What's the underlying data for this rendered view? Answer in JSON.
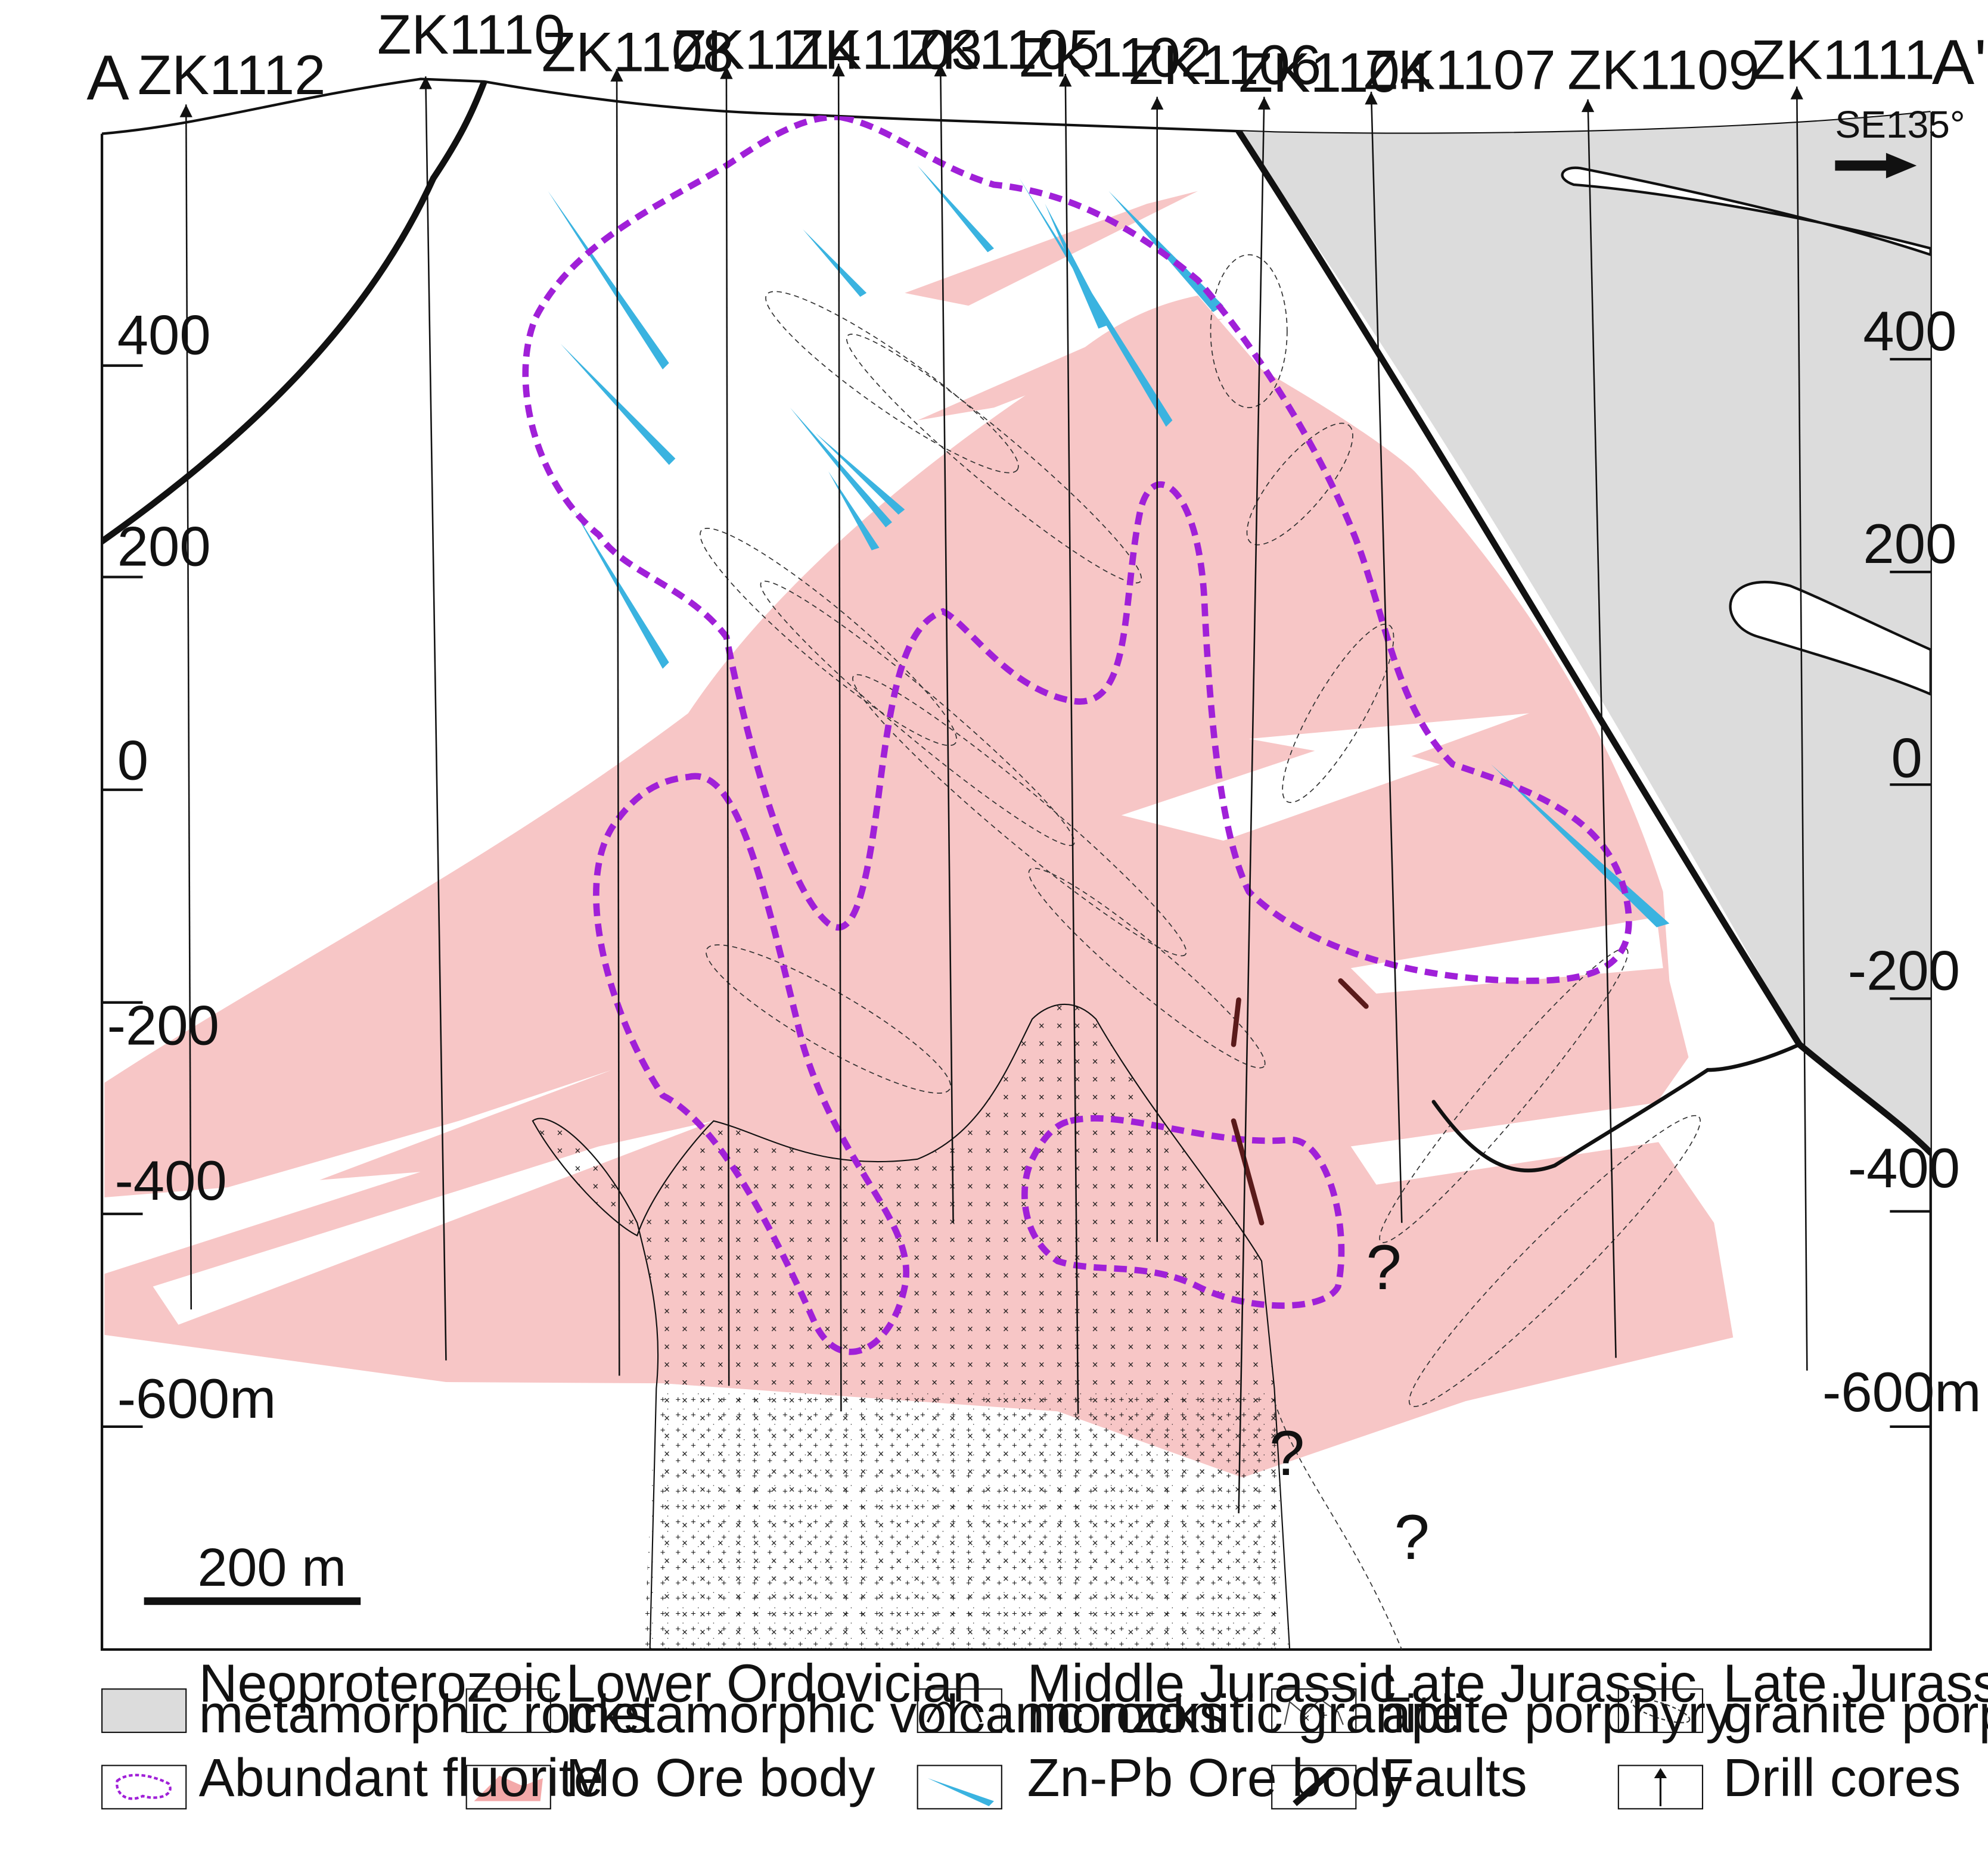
{
  "section": {
    "end_left": "A",
    "end_right": "A'",
    "orientation": "SE135°",
    "scale_label": "200 m"
  },
  "drill_holes": [
    "ZK1112",
    "ZK1110",
    "ZK1108",
    "ZK1114",
    "ZK1103",
    "ZK1105",
    "ZK1102",
    "ZK1106",
    "ZK1104",
    "ZK1107",
    "ZK1109",
    "ZK1111"
  ],
  "elevations_left": [
    "400",
    "200",
    "0",
    "-200",
    "-400",
    "-600m"
  ],
  "elevations_right": [
    "400",
    "200",
    "0",
    "-200",
    "-400",
    "-600m"
  ],
  "uncertain_marks": [
    "?",
    "?",
    "?"
  ],
  "colors": {
    "mo_ore": "#f7c6c6",
    "fluorite": "#a020d8",
    "zn_pb": "#3ab3e0",
    "neoproterozoic": "#dcdcdc",
    "fault": "#2a1a1a"
  },
  "legend": [
    {
      "icon": "neoproterozoic-swatch",
      "line1": "Neoproterozoic",
      "line2": "metamorphic rocks"
    },
    {
      "icon": "ordovician-swatch",
      "line1": "Lower Ordovician",
      "line2": "metamorphic volcanic rocks"
    },
    {
      "icon": "monzonitic-granite-icon",
      "line1": "Middle Jurassic",
      "line2": "monzonitic granite"
    },
    {
      "icon": "aplite-porphyry-icon",
      "line1": "Late Jurassic",
      "line2": "aplite porphyry"
    },
    {
      "icon": "granite-porphyry-icon",
      "line1": "Late Jurassic",
      "line2": "granite porphyry"
    },
    {
      "icon": "fluorite-icon",
      "line1": "Abundant fluorite",
      "line2": ""
    },
    {
      "icon": "mo-ore-icon",
      "line1": "Mo Ore body",
      "line2": ""
    },
    {
      "icon": "zn-pb-ore-icon",
      "line1": "Zn-Pb Ore body",
      "line2": ""
    },
    {
      "icon": "fault-icon",
      "line1": "Faults",
      "line2": ""
    },
    {
      "icon": "drill-core-icon",
      "line1": "Drill cores",
      "line2": ""
    }
  ]
}
